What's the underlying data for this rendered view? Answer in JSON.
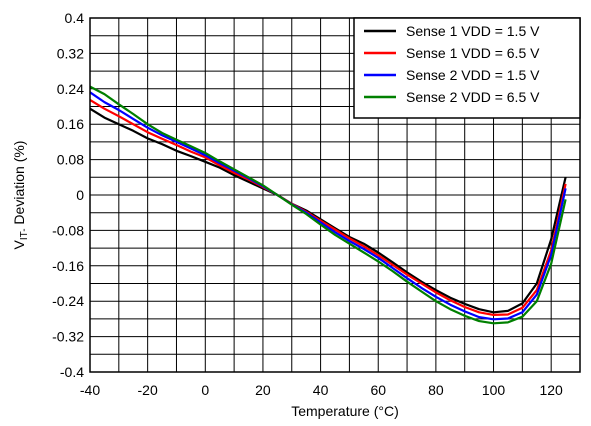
{
  "chart_data": {
    "type": "line",
    "xlabel": "Temperature (°C)",
    "ylabel_main": "V",
    "ylabel_sub": "IT-",
    "ylabel_rest": " Deviation (%)",
    "xlim": [
      -40,
      130
    ],
    "ylim": [
      -0.4,
      0.4
    ],
    "xticks": [
      "-40",
      "-20",
      "0",
      "20",
      "40",
      "60",
      "80",
      "100",
      "120"
    ],
    "yticks": [
      "0.4",
      "0.32",
      "0.24",
      "0.16",
      "0.08",
      "0",
      "-0.08",
      "-0.16",
      "-0.24",
      "-0.32",
      "-0.4"
    ],
    "grid": true,
    "legend_position": "top-right",
    "series": [
      {
        "name": "Sense 1 VDD = 1.5 V",
        "color": "#000000",
        "x": [
          -40,
          -35,
          -30,
          -25,
          -20,
          -15,
          -10,
          -5,
          0,
          5,
          10,
          15,
          20,
          25,
          30,
          35,
          40,
          45,
          50,
          55,
          60,
          65,
          70,
          75,
          80,
          85,
          90,
          95,
          100,
          105,
          110,
          115,
          120,
          125
        ],
        "y": [
          0.195,
          0.175,
          0.16,
          0.145,
          0.128,
          0.115,
          0.1,
          0.088,
          0.075,
          0.062,
          0.045,
          0.03,
          0.015,
          0.0,
          -0.02,
          -0.035,
          -0.055,
          -0.075,
          -0.095,
          -0.11,
          -0.13,
          -0.152,
          -0.175,
          -0.196,
          -0.215,
          -0.232,
          -0.246,
          -0.258,
          -0.265,
          -0.262,
          -0.245,
          -0.2,
          -0.1,
          0.04
        ]
      },
      {
        "name": "Sense 1 VDD = 6.5 V",
        "color": "#ff0000",
        "x": [
          -40,
          -35,
          -30,
          -25,
          -20,
          -15,
          -10,
          -5,
          0,
          5,
          10,
          15,
          20,
          25,
          30,
          35,
          40,
          45,
          50,
          55,
          60,
          65,
          70,
          75,
          80,
          85,
          90,
          95,
          100,
          105,
          110,
          115,
          120,
          125
        ],
        "y": [
          0.215,
          0.195,
          0.178,
          0.16,
          0.142,
          0.127,
          0.113,
          0.098,
          0.085,
          0.067,
          0.05,
          0.035,
          0.018,
          0.0,
          -0.02,
          -0.038,
          -0.058,
          -0.078,
          -0.098,
          -0.116,
          -0.136,
          -0.158,
          -0.18,
          -0.2,
          -0.22,
          -0.238,
          -0.253,
          -0.265,
          -0.271,
          -0.27,
          -0.255,
          -0.215,
          -0.125,
          0.025
        ]
      },
      {
        "name": "Sense 2 VDD = 1.5 V",
        "color": "#0000ff",
        "x": [
          -40,
          -35,
          -30,
          -25,
          -20,
          -15,
          -10,
          -5,
          0,
          5,
          10,
          15,
          20,
          25,
          30,
          35,
          40,
          45,
          50,
          55,
          60,
          65,
          70,
          75,
          80,
          85,
          90,
          95,
          100,
          105,
          110,
          115,
          120,
          125
        ],
        "y": [
          0.232,
          0.21,
          0.192,
          0.172,
          0.152,
          0.135,
          0.12,
          0.105,
          0.09,
          0.072,
          0.055,
          0.038,
          0.02,
          0.0,
          -0.021,
          -0.04,
          -0.062,
          -0.084,
          -0.104,
          -0.122,
          -0.142,
          -0.165,
          -0.188,
          -0.21,
          -0.23,
          -0.248,
          -0.263,
          -0.276,
          -0.281,
          -0.279,
          -0.265,
          -0.225,
          -0.135,
          0.015
        ]
      },
      {
        "name": "Sense 2 VDD = 6.5 V",
        "color": "#008000",
        "x": [
          -40,
          -35,
          -30,
          -25,
          -20,
          -15,
          -10,
          -5,
          0,
          5,
          10,
          15,
          20,
          25,
          30,
          35,
          40,
          45,
          50,
          55,
          60,
          65,
          70,
          75,
          80,
          85,
          90,
          95,
          100,
          105,
          110,
          115,
          120,
          125
        ],
        "y": [
          0.245,
          0.228,
          0.205,
          0.183,
          0.16,
          0.14,
          0.125,
          0.11,
          0.095,
          0.076,
          0.058,
          0.04,
          0.022,
          0.0,
          -0.022,
          -0.043,
          -0.067,
          -0.09,
          -0.11,
          -0.13,
          -0.15,
          -0.172,
          -0.196,
          -0.218,
          -0.24,
          -0.258,
          -0.273,
          -0.285,
          -0.29,
          -0.288,
          -0.275,
          -0.24,
          -0.155,
          -0.01
        ]
      }
    ]
  }
}
